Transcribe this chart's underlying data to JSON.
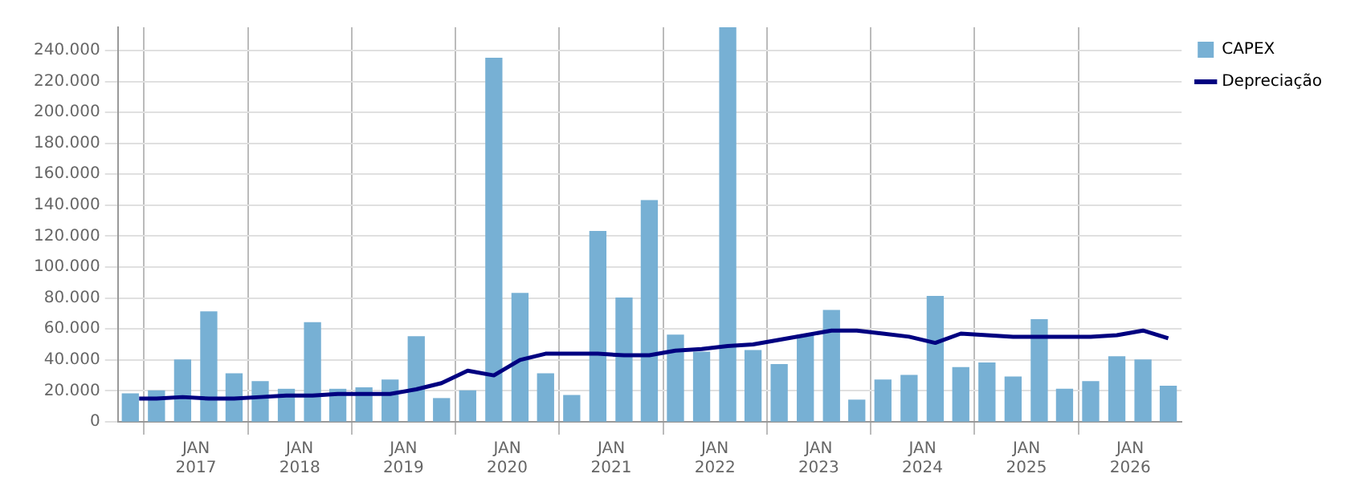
{
  "chart_data": {
    "type": "bar",
    "x": [
      "2016-05-15",
      "2016-08-15",
      "2016-11-15",
      "2017-02-15",
      "2017-05-15",
      "2017-08-15",
      "2017-11-15",
      "2018-02-15",
      "2018-05-15",
      "2018-08-15",
      "2018-11-15",
      "2019-02-15",
      "2019-05-15",
      "2019-08-15",
      "2019-11-15",
      "2020-02-15",
      "2020-05-15",
      "2020-08-15",
      "2020-11-15",
      "2021-02-15",
      "2021-05-15",
      "2021-08-15",
      "2021-11-15",
      "2022-02-15",
      "2022-05-15",
      "2022-08-15",
      "2022-11-15",
      "2023-02-15",
      "2023-05-15",
      "2023-08-15",
      "2023-11-15",
      "2024-02-15",
      "2024-05-15",
      "2024-08-15",
      "2024-11-15",
      "2025-02-15",
      "2025-05-15",
      "2025-08-15",
      "2025-11-15",
      "2026-02-15",
      "2026-05-15"
    ],
    "series": [
      {
        "name": "CAPEX",
        "color": "#77b0d4",
        "values": [
          18000,
          20000,
          40000,
          71000,
          31000,
          26000,
          21000,
          64000,
          21000,
          22000,
          27000,
          55000,
          15000,
          20000,
          235000,
          83000,
          31000,
          17000,
          123000,
          80000,
          143000,
          56000,
          45000,
          255000,
          46000,
          37000,
          56000,
          72000,
          14000,
          27000,
          30000,
          81000,
          35000,
          38000,
          29000,
          66000,
          21000,
          26000,
          42000,
          40000,
          23000
        ]
      },
      {
        "name": "Depreciação",
        "type": "line",
        "color": "#000080",
        "x": [
          "2016-06-15",
          "2016-08-15",
          "2016-11-15",
          "2017-02-15",
          "2017-05-15",
          "2017-08-15",
          "2017-11-15",
          "2018-02-15",
          "2018-05-15",
          "2018-08-15",
          "2018-11-15",
          "2019-02-15",
          "2019-05-15",
          "2019-08-15",
          "2019-11-15",
          "2020-02-15",
          "2020-05-15",
          "2020-08-15",
          "2020-11-15",
          "2021-02-15",
          "2021-05-15",
          "2021-08-15",
          "2021-11-15",
          "2022-02-15",
          "2022-05-15",
          "2022-08-15",
          "2022-11-15",
          "2023-02-15",
          "2023-05-15",
          "2023-08-15",
          "2023-11-15",
          "2024-02-15",
          "2024-05-15",
          "2024-08-15",
          "2024-11-15",
          "2025-02-15",
          "2025-05-15",
          "2025-08-15",
          "2025-11-15",
          "2026-02-15",
          "2026-05-15"
        ],
        "values": [
          15000,
          15000,
          16000,
          15000,
          15000,
          16000,
          17000,
          17000,
          18000,
          18000,
          18000,
          21000,
          25000,
          33000,
          30000,
          40000,
          44000,
          44000,
          44000,
          43000,
          43000,
          46000,
          47000,
          49000,
          50000,
          53000,
          56000,
          59000,
          59000,
          57000,
          55000,
          51000,
          57000,
          56000,
          55000,
          55000,
          55000,
          55000,
          56000,
          59000,
          54000
        ]
      }
    ],
    "xlim": [
      "2016-04-01",
      "2026-07-01"
    ],
    "xticks": [
      {
        "value": "2017-01-01",
        "label": "JAN 2017"
      },
      {
        "value": "2018-01-01",
        "label": "JAN 2018"
      },
      {
        "value": "2019-01-01",
        "label": "JAN 2019"
      },
      {
        "value": "2020-01-01",
        "label": "JAN 2020"
      },
      {
        "value": "2021-01-01",
        "label": "JAN 2021"
      },
      {
        "value": "2022-01-01",
        "label": "JAN 2022"
      },
      {
        "value": "2023-01-01",
        "label": "JAN 2023"
      },
      {
        "value": "2024-01-01",
        "label": "JAN 2024"
      },
      {
        "value": "2025-01-01",
        "label": "JAN 2025"
      },
      {
        "value": "2026-01-01",
        "label": "JAN 2026"
      }
    ],
    "ylim": [
      0,
      255000
    ],
    "yticks": [
      {
        "value": 0,
        "label": "0"
      },
      {
        "value": 20000,
        "label": "20.000"
      },
      {
        "value": 40000,
        "label": "40.000"
      },
      {
        "value": 60000,
        "label": "60.000"
      },
      {
        "value": 80000,
        "label": "80.000"
      },
      {
        "value": 100000,
        "label": "100.000"
      },
      {
        "value": 120000,
        "label": "120.000"
      },
      {
        "value": 140000,
        "label": "140.000"
      },
      {
        "value": 160000,
        "label": "160.000"
      },
      {
        "value": 180000,
        "label": "180.000"
      },
      {
        "value": 200000,
        "label": "200.000"
      },
      {
        "value": 220000,
        "label": "220.000"
      },
      {
        "value": 240000,
        "label": "240.000"
      }
    ],
    "grid": true,
    "legend": "top right",
    "marker": "none",
    "line_style": "solid"
  }
}
